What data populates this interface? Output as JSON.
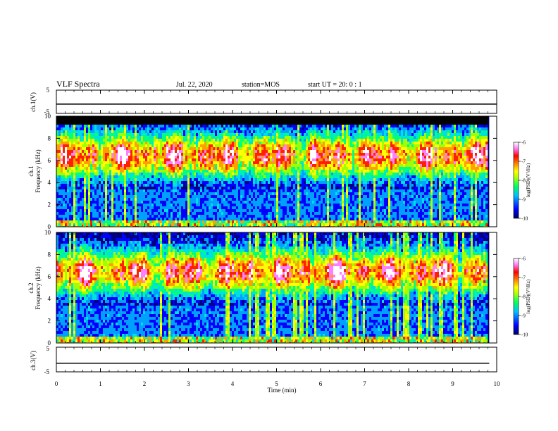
{
  "header": {
    "title": "VLF Spectra",
    "date": "Jul. 22, 2020",
    "station": "station=MOS",
    "start": "start UT = 20: 0 : 1"
  },
  "chart_data": {
    "type": "heatmap",
    "xlabel": "Time (min)",
    "xlim": [
      0,
      10
    ],
    "xticks": [
      "0",
      "1",
      "2",
      "3",
      "4",
      "5",
      "6",
      "7",
      "8",
      "9",
      "10"
    ],
    "panels": [
      {
        "id": "ch1-voltage",
        "kind": "line",
        "ylabel": "ch.1(V)",
        "ylim": [
          -5,
          5
        ],
        "yticks": [
          "5",
          "-5"
        ],
        "baseline_value": -1
      },
      {
        "id": "ch1-spectrogram",
        "kind": "spectrogram",
        "ylabel_channel": "ch.1",
        "ylabel": "Frequency (kHz)",
        "ylim": [
          0,
          10
        ],
        "yticks": [
          "0",
          "2",
          "4",
          "6",
          "8",
          "10"
        ],
        "band_peak_khz": 6.5,
        "saturation_above_khz": 9.2,
        "colorbar": {
          "label": "log(PSD)(V²/Hz)",
          "range": [
            -10,
            -6
          ],
          "ticks": [
            "-6",
            "-7",
            "-8",
            "-9",
            "-10"
          ]
        }
      },
      {
        "id": "ch2-spectrogram",
        "kind": "spectrogram",
        "ylabel_channel": "ch.2",
        "ylabel": "Frequency (kHz)",
        "ylim": [
          0,
          10
        ],
        "yticks": [
          "0",
          "2",
          "4",
          "6",
          "8",
          "10"
        ],
        "band_peak_khz": 6.5,
        "colorbar": {
          "label": "log(PSD)(V²/Hz)",
          "range": [
            -10,
            -6
          ],
          "ticks": [
            "-6",
            "-7",
            "-8",
            "-9",
            "-10"
          ]
        }
      },
      {
        "id": "ch3-voltage",
        "kind": "line",
        "ylabel": "ch.3(V)",
        "ylim": [
          -5,
          5
        ],
        "yticks": [
          "5",
          "-5"
        ],
        "baseline_value": -1.5
      }
    ],
    "data_end_min": 9.83,
    "colormap": [
      "#000080",
      "#0000ff",
      "#00a0ff",
      "#00e0e0",
      "#00ff80",
      "#a0ff00",
      "#ffff00",
      "#ffa000",
      "#ff2000",
      "#ff80ff",
      "#ffffff"
    ]
  }
}
